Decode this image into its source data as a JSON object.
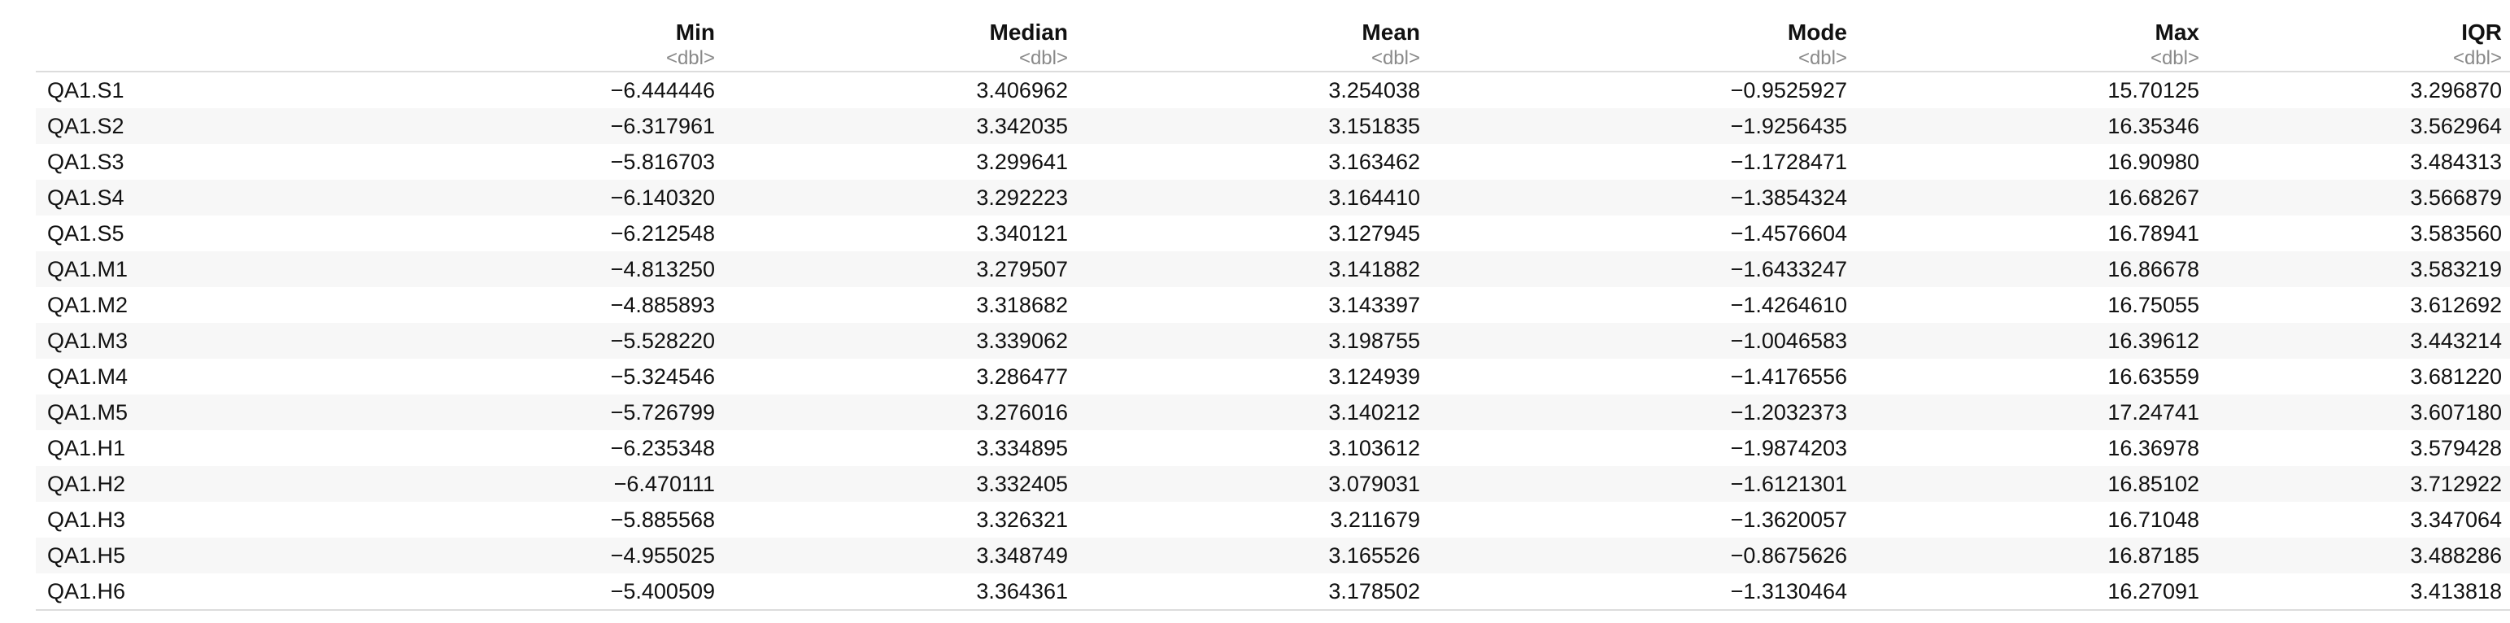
{
  "table": {
    "columns": [
      {
        "name": "",
        "type": ""
      },
      {
        "name": "Min",
        "type": "<dbl>"
      },
      {
        "name": "Median",
        "type": "<dbl>"
      },
      {
        "name": "Mean",
        "type": "<dbl>"
      },
      {
        "name": "Mode",
        "type": "<dbl>"
      },
      {
        "name": "Max",
        "type": "<dbl>"
      },
      {
        "name": "IQR",
        "type": "<dbl>"
      }
    ],
    "rows": [
      [
        "QA1.S1",
        "−6.444446",
        "3.406962",
        "3.254038",
        "−0.9525927",
        "15.70125",
        "3.296870"
      ],
      [
        "QA1.S2",
        "−6.317961",
        "3.342035",
        "3.151835",
        "−1.9256435",
        "16.35346",
        "3.562964"
      ],
      [
        "QA1.S3",
        "−5.816703",
        "3.299641",
        "3.163462",
        "−1.1728471",
        "16.90980",
        "3.484313"
      ],
      [
        "QA1.S4",
        "−6.140320",
        "3.292223",
        "3.164410",
        "−1.3854324",
        "16.68267",
        "3.566879"
      ],
      [
        "QA1.S5",
        "−6.212548",
        "3.340121",
        "3.127945",
        "−1.4576604",
        "16.78941",
        "3.583560"
      ],
      [
        "QA1.M1",
        "−4.813250",
        "3.279507",
        "3.141882",
        "−1.6433247",
        "16.86678",
        "3.583219"
      ],
      [
        "QA1.M2",
        "−4.885893",
        "3.318682",
        "3.143397",
        "−1.4264610",
        "16.75055",
        "3.612692"
      ],
      [
        "QA1.M3",
        "−5.528220",
        "3.339062",
        "3.198755",
        "−1.0046583",
        "16.39612",
        "3.443214"
      ],
      [
        "QA1.M4",
        "−5.324546",
        "3.286477",
        "3.124939",
        "−1.4176556",
        "16.63559",
        "3.681220"
      ],
      [
        "QA1.M5",
        "−5.726799",
        "3.276016",
        "3.140212",
        "−1.2032373",
        "17.24741",
        "3.607180"
      ],
      [
        "QA1.H1",
        "−6.235348",
        "3.334895",
        "3.103612",
        "−1.9874203",
        "16.36978",
        "3.579428"
      ],
      [
        "QA1.H2",
        "−6.470111",
        "3.332405",
        "3.079031",
        "−1.6121301",
        "16.85102",
        "3.712922"
      ],
      [
        "QA1.H3",
        "−5.885568",
        "3.326321",
        "3.211679",
        "−1.3620057",
        "16.71048",
        "3.347064"
      ],
      [
        "QA1.H5",
        "−4.955025",
        "3.348749",
        "3.165526",
        "−0.8675626",
        "16.87185",
        "3.488286"
      ],
      [
        "QA1.H6",
        "−5.400509",
        "3.364361",
        "3.178502",
        "−1.3130464",
        "16.27091",
        "3.413818"
      ]
    ]
  }
}
